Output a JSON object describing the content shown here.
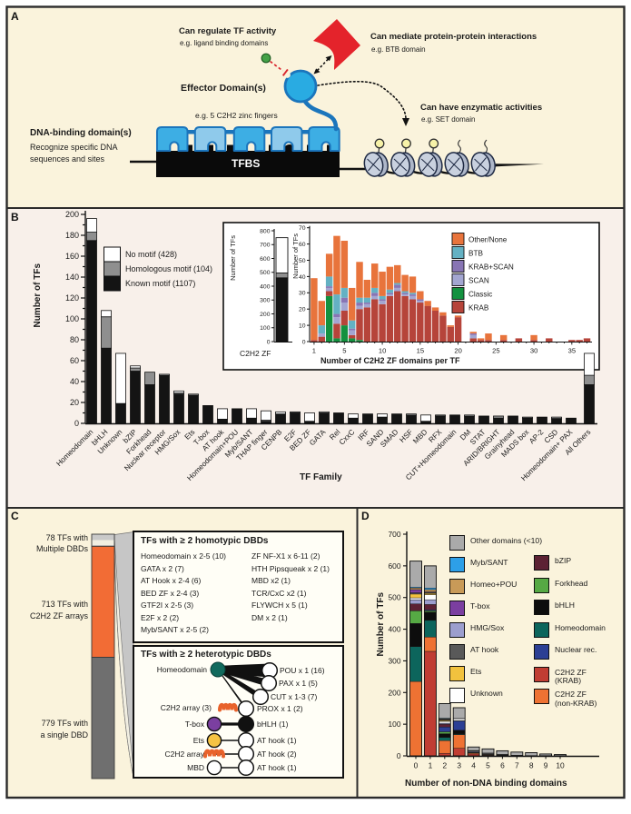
{
  "figure": {
    "panel_labels": {
      "a": "A",
      "b": "B",
      "c": "C",
      "d": "D"
    }
  },
  "panel_a": {
    "regulate_title": "Can regulate TF activity",
    "regulate_sub": "e.g. ligand binding domains",
    "effector_label": "Effector Domain(s)",
    "mediate_title": "Can mediate protein-protein interactions",
    "mediate_sub": "e.g. BTB domain",
    "enzymatic_title": "Can have enzymatic activities",
    "enzymatic_sub": "e.g. SET domain",
    "zf_note": "e.g. 5 C2H2 zinc fingers",
    "dbd_title": "DNA-binding domain(s)",
    "dbd_sub1": "Recognize specific DNA",
    "dbd_sub2": "sequences and sites",
    "tfbs_label": "TFBS"
  },
  "chart_data": [
    {
      "id": "tf_family_motifs",
      "type": "bar",
      "stacked": true,
      "title": "",
      "xlabel": "TF Family",
      "ylabel": "Number of TFs",
      "ylim": [
        0,
        200
      ],
      "ytick_step": 20,
      "legend_order": [
        "No motif (428)",
        "Homologous motif (104)",
        "Known motif (1107)"
      ],
      "categories": [
        "Homeodomain",
        "bHLH",
        "Unknown",
        "bZIP",
        "Forkhead",
        "Nuclear receptor",
        "HMG/Sox",
        "Ets",
        "T-box",
        "AT hook",
        "Homeodomain+POU",
        "Myb/SANT",
        "THAP finger",
        "CENPB",
        "E2F",
        "BED ZF",
        "GATA",
        "Rel",
        "CxxC",
        "IRF",
        "SAND",
        "SMAD",
        "HSF",
        "MBD",
        "RFX",
        "CUT+Homeodomain",
        "DM",
        "STAT",
        "ARID/BRIGHT",
        "Grainyhead",
        "MADS box",
        "AP-2",
        "CSD",
        "Homeodomain+ PAX",
        "All Others"
      ],
      "series": [
        {
          "name": "Known motif (1107)",
          "color": "#141414",
          "values": [
            175,
            72,
            19,
            50,
            37,
            46,
            28,
            27,
            17,
            4,
            14,
            5,
            2,
            9,
            10,
            2,
            10,
            10,
            5,
            9,
            6,
            9,
            8,
            2,
            7,
            8,
            7,
            7,
            5,
            7,
            5,
            6,
            4,
            5,
            37
          ]
        },
        {
          "name": "Homologous motif (104)",
          "color": "#8f8f8f",
          "values": [
            8,
            30,
            0,
            3,
            12,
            0,
            1,
            0,
            0,
            0,
            0,
            0,
            1,
            0,
            1,
            0,
            0,
            0,
            0,
            0,
            0,
            0,
            0,
            0,
            1,
            0,
            0,
            0,
            2,
            0,
            1,
            0,
            1,
            0,
            9
          ]
        },
        {
          "name": "No motif (428)",
          "color": "#ffffff",
          "values": [
            13,
            6,
            48,
            2,
            0,
            1,
            2,
            1,
            0,
            10,
            0,
            9,
            9,
            2,
            0,
            8,
            1,
            0,
            4,
            0,
            3,
            0,
            1,
            6,
            0,
            0,
            1,
            0,
            0,
            0,
            0,
            0,
            1,
            0,
            21
          ]
        }
      ]
    },
    {
      "id": "c2h2_total",
      "type": "bar",
      "stacked": true,
      "title": "",
      "xlabel": "",
      "ylabel": "Number of TFs",
      "ylim": [
        0,
        800
      ],
      "ytick_step": 100,
      "categories": [
        "C2H2 ZF"
      ],
      "series": [
        {
          "name": "Known motif",
          "color": "#141414",
          "values": [
            460
          ]
        },
        {
          "name": "Homologous motif",
          "color": "#8f8f8f",
          "values": [
            35
          ]
        },
        {
          "name": "No motif",
          "color": "#ffffff",
          "values": [
            255
          ]
        }
      ]
    },
    {
      "id": "c2h2_domains_per_tf",
      "type": "bar",
      "stacked": true,
      "title": "",
      "xlabel": "Number of C2H2 ZF domains per TF",
      "ylabel": "Number of TFs",
      "ylim": [
        0,
        70
      ],
      "ytick_step": 10,
      "xticks_labeled": [
        1,
        5,
        10,
        15,
        20,
        25,
        30,
        35
      ],
      "x": [
        1,
        2,
        3,
        4,
        5,
        6,
        7,
        8,
        9,
        10,
        11,
        12,
        13,
        14,
        15,
        16,
        17,
        18,
        19,
        20,
        21,
        22,
        23,
        24,
        25,
        26,
        27,
        28,
        29,
        30,
        31,
        32,
        33,
        34,
        35,
        36,
        37
      ],
      "legend_order": [
        "Other/None",
        "BTB",
        "KRAB+SCAN",
        "SCAN",
        "Classic",
        "KRAB"
      ],
      "series": [
        {
          "name": "Classic",
          "color": "#13913f",
          "values": [
            0,
            0,
            28,
            2,
            10,
            2,
            1,
            0,
            0,
            0,
            0,
            0,
            0,
            0,
            0,
            0,
            0,
            0,
            0,
            0,
            0,
            0,
            0,
            0,
            0,
            0,
            0,
            0,
            0,
            0,
            0,
            0,
            0,
            0,
            0,
            0,
            0
          ]
        },
        {
          "name": "KRAB",
          "color": "#b6443a",
          "values": [
            1,
            3,
            3,
            9,
            9,
            2,
            19,
            21,
            26,
            23,
            28,
            31,
            28,
            26,
            24,
            22,
            19,
            16,
            9,
            15,
            0,
            2,
            1,
            1,
            0,
            1,
            0,
            2,
            0,
            1,
            0,
            2,
            0,
            0,
            1,
            1,
            2
          ]
        },
        {
          "name": "SCAN",
          "color": "#a3a6d1",
          "values": [
            0,
            2,
            2,
            4,
            5,
            3,
            2,
            2,
            2,
            2,
            1,
            2,
            1,
            2,
            1,
            0,
            0,
            0,
            0,
            0,
            0,
            2,
            0,
            0,
            0,
            0,
            0,
            0,
            0,
            0,
            0,
            0,
            0,
            0,
            0,
            0,
            0
          ]
        },
        {
          "name": "KRAB+SCAN",
          "color": "#8875b4",
          "values": [
            0,
            0,
            1,
            2,
            3,
            1,
            2,
            1,
            2,
            1,
            1,
            2,
            1,
            1,
            1,
            0,
            0,
            0,
            0,
            0,
            0,
            1,
            0,
            0,
            0,
            0,
            0,
            0,
            0,
            0,
            0,
            0,
            0,
            0,
            0,
            0,
            0
          ]
        },
        {
          "name": "BTB",
          "color": "#64b1c3",
          "values": [
            0,
            5,
            6,
            12,
            6,
            5,
            3,
            3,
            3,
            2,
            2,
            1,
            1,
            1,
            0,
            0,
            0,
            0,
            0,
            0,
            0,
            0,
            0,
            0,
            0,
            0,
            0,
            0,
            0,
            0,
            0,
            0,
            0,
            0,
            0,
            0,
            0
          ]
        },
        {
          "name": "Other/None",
          "color": "#e8743c",
          "values": [
            38,
            15,
            14,
            36,
            29,
            20,
            22,
            11,
            15,
            15,
            14,
            11,
            10,
            10,
            5,
            3,
            2,
            2,
            1,
            1,
            0,
            1,
            1,
            4,
            0,
            3,
            0,
            0,
            0,
            3,
            0,
            0,
            0,
            0,
            0,
            0,
            0
          ]
        }
      ]
    },
    {
      "id": "non_dbd_domains",
      "type": "bar",
      "stacked": true,
      "title": "",
      "xlabel": "Number of non-DNA binding domains",
      "ylabel": "Number of TFs",
      "ylim": [
        0,
        700
      ],
      "ytick_step": 100,
      "categories": [
        "0",
        "1",
        "2",
        "3",
        "4",
        "5",
        "6",
        "7",
        "8",
        "9",
        "10"
      ],
      "legend_col1": [
        "Other domains (<10)",
        "Myb/SANT",
        "Homeo+POU",
        "T-box",
        "HMG/Sox",
        "AT hook",
        "Ets",
        "Unknown"
      ],
      "legend_col2": [
        "bZIP",
        "Forkhead",
        "bHLH",
        "Homeodomain",
        "Nuclear rec.",
        "C2H2 ZF|(KRAB)",
        "C2H2 ZF|(non-KRAB)"
      ],
      "series": [
        {
          "name": "C2H2 ZF (KRAB)",
          "color": "#c03d33",
          "values": [
            0,
            330,
            8,
            24,
            6,
            2,
            1,
            1,
            0,
            0,
            0
          ]
        },
        {
          "name": "C2H2 ZF (non-KRAB)",
          "color": "#ee7233",
          "values": [
            235,
            45,
            40,
            43,
            3,
            2,
            1,
            0,
            0,
            0,
            0
          ]
        },
        {
          "name": "Homeodomain",
          "color": "#0c655c",
          "values": [
            110,
            53,
            10,
            2,
            0,
            0,
            0,
            0,
            0,
            0,
            0
          ]
        },
        {
          "name": "bHLH",
          "color": "#0d0d0d",
          "values": [
            73,
            26,
            12,
            12,
            2,
            1,
            0,
            0,
            0,
            0,
            0
          ]
        },
        {
          "name": "Forkhead",
          "color": "#56a944",
          "values": [
            40,
            4,
            6,
            0,
            0,
            0,
            0,
            0,
            0,
            0,
            0
          ]
        },
        {
          "name": "Nuclear rec.",
          "color": "#2c3f94",
          "values": [
            0,
            3,
            15,
            29,
            2,
            0,
            0,
            0,
            0,
            0,
            0
          ]
        },
        {
          "name": "bZIP",
          "color": "#5c2234",
          "values": [
            22,
            17,
            9,
            0,
            0,
            0,
            0,
            0,
            0,
            0,
            0
          ]
        },
        {
          "name": "HMG/Sox",
          "color": "#9c9ece",
          "values": [
            13,
            15,
            3,
            1,
            0,
            0,
            0,
            0,
            0,
            0,
            0
          ]
        },
        {
          "name": "Unknown",
          "color": "#ffffff",
          "values": [
            6,
            16,
            6,
            6,
            2,
            2,
            1,
            0,
            0,
            0,
            0
          ]
        },
        {
          "name": "Ets",
          "color": "#f2c23e",
          "values": [
            12,
            4,
            3,
            0,
            0,
            0,
            0,
            0,
            0,
            0,
            0
          ]
        },
        {
          "name": "AT hook",
          "color": "#595959",
          "values": [
            4,
            3,
            2,
            1,
            2,
            2,
            2,
            1,
            1,
            1,
            0
          ]
        },
        {
          "name": "T-box",
          "color": "#7b3fa0",
          "values": [
            10,
            2,
            1,
            0,
            0,
            0,
            0,
            0,
            0,
            0,
            0
          ]
        },
        {
          "name": "Homeo+POU",
          "color": "#c89a58",
          "values": [
            5,
            7,
            2,
            0,
            0,
            0,
            0,
            0,
            0,
            0,
            0
          ]
        },
        {
          "name": "Myb/SANT",
          "color": "#2d9fe8",
          "values": [
            3,
            5,
            2,
            0,
            0,
            0,
            0,
            0,
            0,
            0,
            0
          ]
        },
        {
          "name": "Other domains (<10)",
          "color": "#aaaaaa",
          "values": [
            82,
            70,
            46,
            34,
            11,
            13,
            11,
            10,
            9,
            5,
            4
          ]
        }
      ]
    }
  ],
  "panel_c": {
    "bar_segments": [
      {
        "label1": "78 TFs with",
        "label2": "Multiple DBDs",
        "value": 78,
        "color": "#c9c9c9"
      },
      {
        "label1": "713 TFs with",
        "label2": "C2H2 ZF arrays",
        "value": 713,
        "color": "#f26c35"
      },
      {
        "label1": "779 TFs with",
        "label2": "a single DBD",
        "value": 779,
        "color": "#6f6f6f"
      }
    ],
    "homotypic": {
      "title": "TFs with ≥ 2 homotypic DBDs",
      "col1": [
        "Homeodomain x 2-5 (10)",
        "GATA x 2 (7)",
        "AT Hook x 2-4 (6)",
        "BED ZF x 2-4 (3)",
        "GTF2I x 2-5 (3)",
        "E2F x 2 (2)",
        "Myb/SANT x 2-5 (2)"
      ],
      "col2": [
        "ZF NF-X1 x 6-11 (2)",
        "HTH Pipsqueak x 2 (1)",
        "MBD  x2 (1)",
        "TCR/CxC x2 (1)",
        "FLYWCH x 5 (1)",
        "DM x 2 (1)"
      ]
    },
    "heterotypic": {
      "title": "TFs with ≥ 2 heterotypic DBDs",
      "hub_label": "Homeodomain",
      "hub_color": "#116a5d",
      "hub_targets": [
        {
          "label": "POU x 1 (16)",
          "weight": 15
        },
        {
          "label": "PAX x 1 (5)",
          "weight": 8
        },
        {
          "label": "CUT x 1-3 (7)",
          "weight": 6
        },
        {
          "label": "PROX x 1 (2)",
          "weight": 2
        }
      ],
      "c2h2_prox_label": "C2H2 array (3)",
      "pairs": [
        {
          "left_label": "T-box",
          "left_type": "circle",
          "left_color": "#7b3fa0",
          "right_label": "bHLH (1)",
          "right_color": "#111111",
          "weight": 3.2
        },
        {
          "left_label": "Ets",
          "left_type": "circle",
          "left_color": "#f5c344",
          "right_label": "AT hook (1)",
          "right_color": "#ffffff",
          "weight": 1.5
        },
        {
          "left_label": "C2H2 array",
          "left_type": "zigzag",
          "left_color": "#e8622b",
          "right_label": "AT hook (2)",
          "right_color": "#ffffff",
          "weight": 1.5
        },
        {
          "left_label": "MBD",
          "left_type": "circle",
          "left_color": "#ffffff",
          "right_label": "AT hook (1)",
          "right_color": "#ffffff",
          "weight": 1.5
        }
      ]
    }
  },
  "colors": {
    "figure_bg": "#faf3dc",
    "panel_b_bg": "#f8f0ea",
    "border": "#2b2b2b",
    "effector_blue": "#29abe2",
    "deep_blue": "#1b75bc",
    "zf_light": "#8fcaeb",
    "zf_bright": "#3daee4",
    "red_ribbon": "#e4232b",
    "green_dot": "#44a147",
    "inhibit_red": "#d9262e",
    "nucleosome_face": "#c9d1df",
    "nucleosome_edge": "#aeb7c9",
    "histone_mark": "#f7f2a8",
    "funnel_gray": "#c6c6c6",
    "box_bg": "#fffef6"
  }
}
